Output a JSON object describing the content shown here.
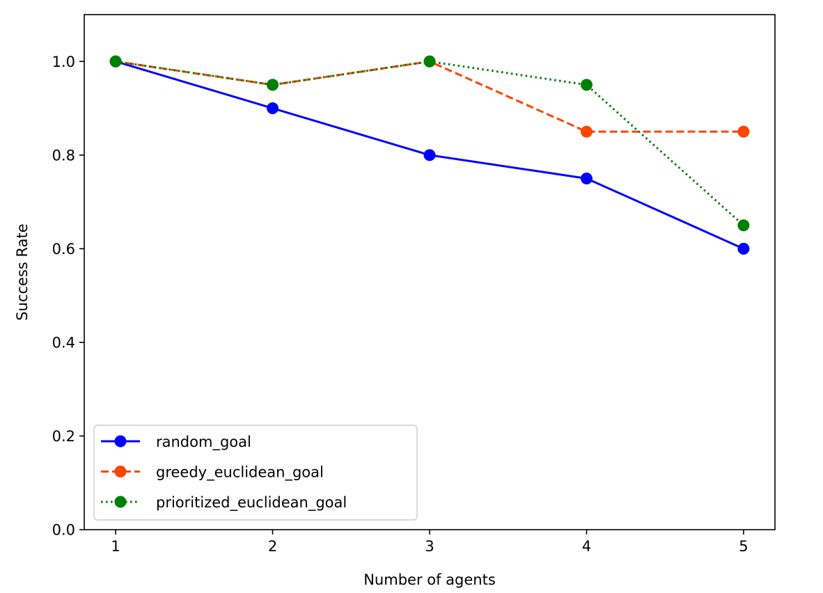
{
  "chart_data": {
    "type": "line",
    "title": "",
    "xlabel": "Number of agents",
    "ylabel": "Success Rate",
    "x": [
      1,
      2,
      3,
      4,
      5
    ],
    "xlim": [
      0.8,
      5.2
    ],
    "ylim": [
      0.0,
      1.1
    ],
    "xticks": [
      1,
      2,
      3,
      4,
      5
    ],
    "yticks": [
      0.0,
      0.2,
      0.4,
      0.6,
      0.8,
      1.0
    ],
    "xtick_labels": [
      "1",
      "2",
      "3",
      "4",
      "5"
    ],
    "ytick_labels": [
      "0.0",
      "0.2",
      "0.4",
      "0.6",
      "0.8",
      "1.0"
    ],
    "grid": false,
    "legend_position": "lower-left",
    "series": [
      {
        "name": "random_goal",
        "values": [
          1.0,
          0.9,
          0.8,
          0.75,
          0.6
        ],
        "color": "#0000ff",
        "line_style": "solid",
        "marker": "circle"
      },
      {
        "name": "greedy_euclidean_goal",
        "values": [
          1.0,
          0.95,
          1.0,
          0.85,
          0.85
        ],
        "color": "#ff4500",
        "line_style": "dashed",
        "marker": "circle"
      },
      {
        "name": "prioritized_euclidean_goal",
        "values": [
          1.0,
          0.95,
          1.0,
          0.95,
          0.65
        ],
        "color": "#008000",
        "line_style": "dotted",
        "marker": "circle"
      }
    ]
  }
}
